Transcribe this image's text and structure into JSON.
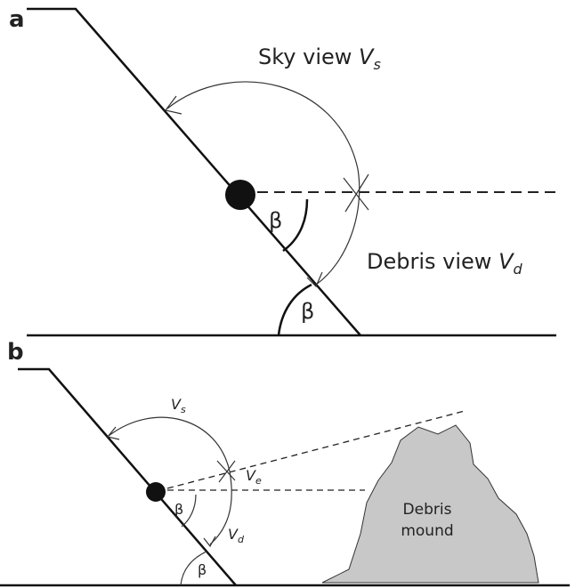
{
  "panels": [
    {
      "label": "a",
      "sky_view": {
        "text": "Sky view",
        "symbol": "V",
        "subscript": "s"
      },
      "debris_view": {
        "text": "Debris view",
        "symbol": "V",
        "subscript": "d"
      },
      "angle_upper": "β",
      "angle_lower": "β"
    },
    {
      "label": "b",
      "sky_view": {
        "symbol": "V",
        "subscript": "s"
      },
      "excluded_view": {
        "symbol": "V",
        "subscript": "e"
      },
      "debris_view": {
        "symbol": "V",
        "subscript": "d"
      },
      "angle_upper": "β",
      "angle_lower": "β",
      "mound": [
        "Debris",
        "mound"
      ]
    }
  ]
}
